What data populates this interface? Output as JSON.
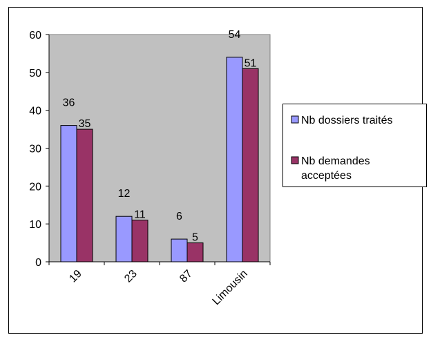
{
  "chart_data": {
    "type": "bar",
    "title": "",
    "xlabel": "",
    "ylabel": "",
    "categories": [
      "19",
      "23",
      "87",
      "Limousin"
    ],
    "series": [
      {
        "name": "Nb dossiers traités",
        "values": [
          36,
          12,
          6,
          54
        ],
        "color": "#9999ff"
      },
      {
        "name": "Nb demandes acceptées",
        "values": [
          35,
          11,
          5,
          51
        ],
        "color": "#993366"
      }
    ],
    "ylim": [
      0,
      60
    ],
    "yticks": [
      0,
      10,
      20,
      30,
      40,
      50,
      60
    ],
    "data_labels": true,
    "grid": false,
    "legend_position": "right",
    "plot_background": "#c0c0c0"
  }
}
